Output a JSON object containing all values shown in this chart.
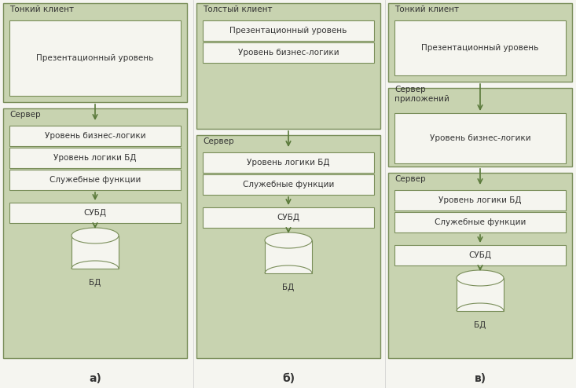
{
  "bg_color": "#f5f5f0",
  "light_green": "#c8d3b0",
  "white_box": "#f5f5ef",
  "border_dark": "#7a8e5a",
  "arrow_color": "#5a7a3a",
  "text_color": "#333333",
  "label_a": "а)",
  "label_b": "б)",
  "label_c": "в)",
  "col_a": {
    "client_title": "Тонкий клиент",
    "client_boxes": [
      "Презентационный уровень"
    ],
    "server_title": "Сервер",
    "server_boxes": [
      "Уровень бизнес-логики",
      "Уровень логики БД",
      "Служебные функции"
    ],
    "db_box": "СУБД",
    "db_label": "БД"
  },
  "col_b": {
    "client_title": "Толстый клиент",
    "client_boxes": [
      "Презентационный уровень",
      "Уровень бизнес-логики"
    ],
    "server_title": "Сервер",
    "server_boxes": [
      "Уровень логики БД",
      "Служебные функции"
    ],
    "db_box": "СУБД",
    "db_label": "БД"
  },
  "col_c": {
    "client_title": "Тонкий клиент",
    "client_boxes": [
      "Презентационный уровень"
    ],
    "app_server_title": "Сервер\nприложений",
    "app_server_boxes": [
      "Уровень бизнес-логики"
    ],
    "server_title": "Сервер",
    "server_boxes": [
      "Уровень логики БД",
      "Служебные функции"
    ],
    "db_box": "СУБД",
    "db_label": "БД"
  },
  "fig_w": 7.33,
  "fig_h": 4.94,
  "dpi": 100
}
